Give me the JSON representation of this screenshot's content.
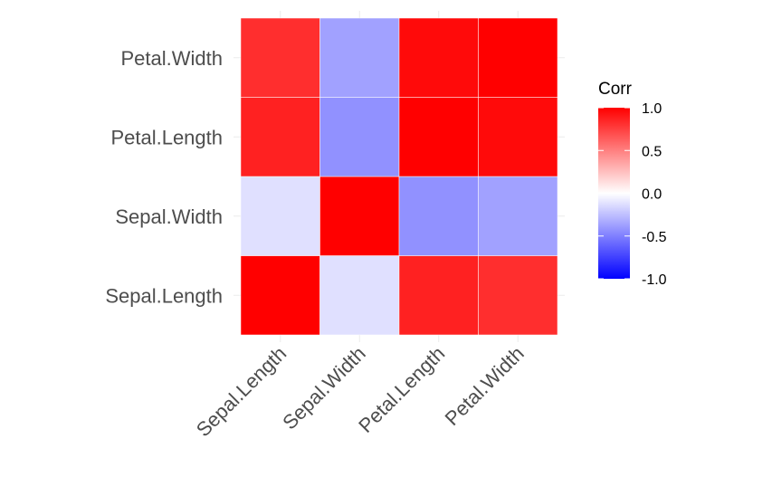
{
  "chart_data": {
    "type": "heatmap",
    "title": "",
    "xlabel": "",
    "ylabel": "",
    "x": [
      "Sepal.Length",
      "Sepal.Width",
      "Petal.Length",
      "Petal.Width"
    ],
    "y": [
      "Sepal.Length",
      "Sepal.Width",
      "Petal.Length",
      "Petal.Width"
    ],
    "values": [
      [
        1.0,
        -0.12,
        0.87,
        0.82
      ],
      [
        -0.12,
        1.0,
        -0.43,
        -0.37
      ],
      [
        0.87,
        -0.43,
        1.0,
        0.96
      ],
      [
        0.82,
        -0.37,
        0.96,
        1.0
      ]
    ],
    "colorscale": {
      "low": "#0000ff",
      "mid": "#ffffff",
      "high": "#ff0000"
    },
    "legend": {
      "title": "Corr",
      "range": [
        -1,
        1
      ],
      "ticks": [
        "1.0",
        "0.5",
        "0.0",
        "-0.5",
        "-1.0"
      ],
      "placement": "right"
    },
    "grid": true
  }
}
